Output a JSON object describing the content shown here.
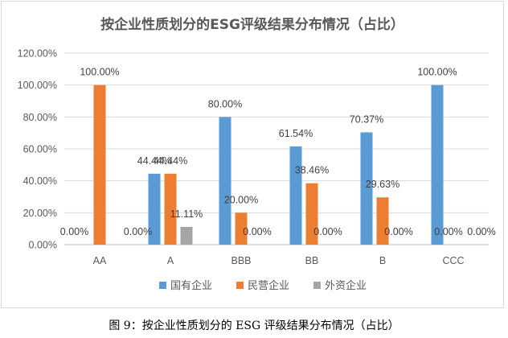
{
  "chart_data": {
    "type": "bar",
    "title": "按企业性质划分的ESG评级结果分布情况（占比）",
    "categories": [
      "AA",
      "A",
      "BBB",
      "BB",
      "B",
      "CCC"
    ],
    "series": [
      {
        "name": "国有企业",
        "color": "#5b9bd5",
        "values": [
          0.0,
          44.44,
          80.0,
          61.54,
          70.37,
          100.0
        ]
      },
      {
        "name": "民营企业",
        "color": "#ed7d31",
        "values": [
          100.0,
          44.44,
          20.0,
          38.46,
          29.63,
          0.0
        ]
      },
      {
        "name": "外资企业",
        "color": "#a5a5a5",
        "values": [
          0.0,
          11.11,
          0.0,
          0.0,
          0.0,
          0.0
        ]
      }
    ],
    "data_labels": [
      [
        "0.00%",
        "44.44%",
        "80.00%",
        "61.54%",
        "70.37%",
        "100.00%"
      ],
      [
        "100.00%",
        "44.44%",
        "20.00%",
        "38.46%",
        "29.63%",
        "0.00%"
      ],
      [
        "0.00%",
        "11.11%",
        "0.00%",
        "0.00%",
        "0.00%",
        "0.00%"
      ]
    ],
    "ylim": [
      0,
      120
    ],
    "ytick_values": [
      0,
      20,
      40,
      60,
      80,
      100,
      120
    ],
    "ytick_labels": [
      "0.00%",
      "20.00%",
      "40.00%",
      "60.00%",
      "80.00%",
      "100.00%",
      "120.00%"
    ],
    "xlabel": "",
    "ylabel": "",
    "grid": true,
    "legend_position": "bottom"
  },
  "caption": "图 9：按企业性质划分的 ESG 评级结果分布情况（占比）"
}
